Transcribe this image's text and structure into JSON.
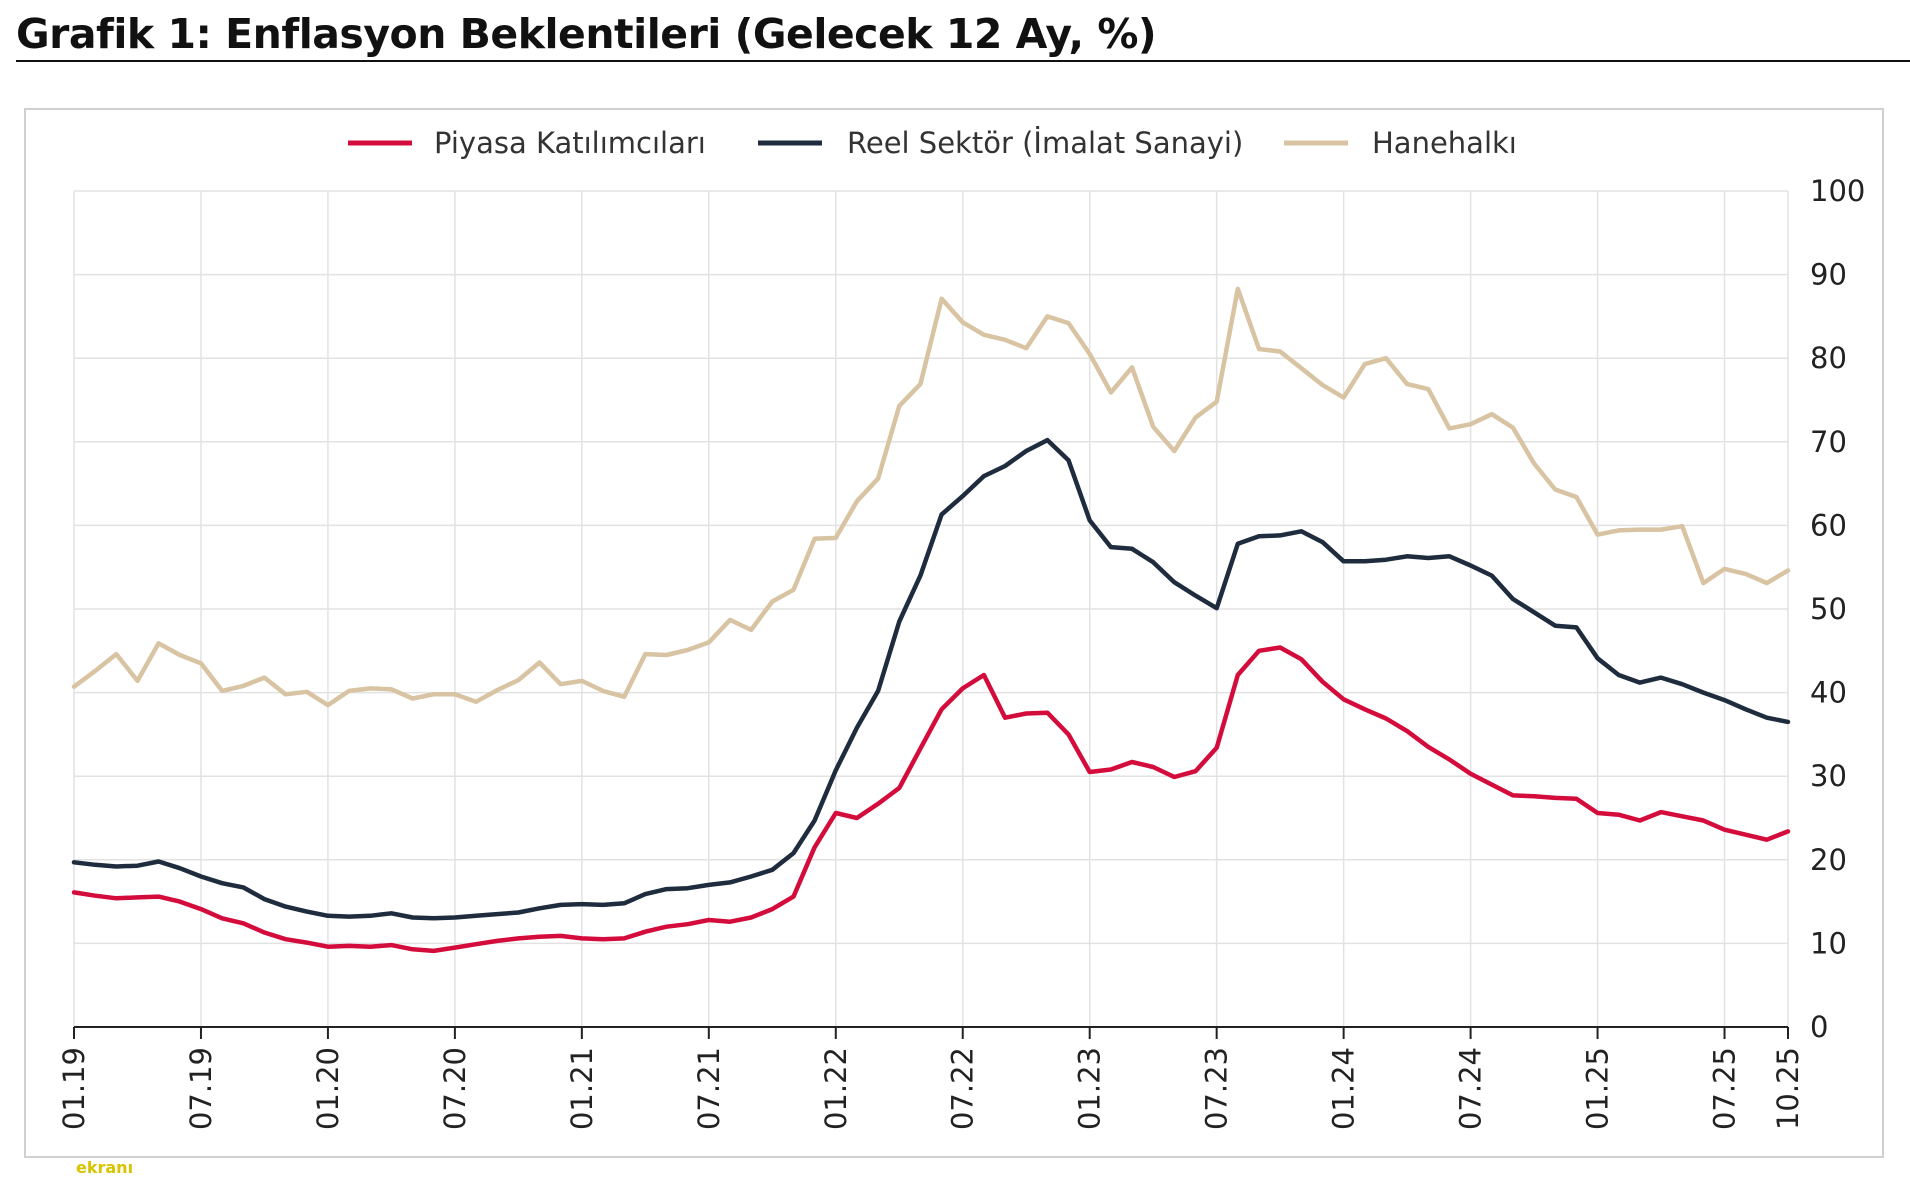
{
  "title": "Grafik 1: Enflasyon Beklentileri (Gelecek 12 Ay, %)",
  "watermark": "ekranı",
  "chart_data": {
    "type": "line",
    "title": "Grafik 1: Enflasyon Beklentileri (Gelecek 12 Ay, %)",
    "ylim": [
      0,
      100
    ],
    "yticks": [
      0,
      10,
      20,
      30,
      40,
      50,
      60,
      70,
      80,
      90,
      100
    ],
    "xticks": [
      {
        "label": "01.19",
        "x": 0
      },
      {
        "label": "07.19",
        "x": 6
      },
      {
        "label": "01.20",
        "x": 12
      },
      {
        "label": "07.20",
        "x": 18
      },
      {
        "label": "01.21",
        "x": 24
      },
      {
        "label": "07.21",
        "x": 30
      },
      {
        "label": "01.22",
        "x": 36
      },
      {
        "label": "07.22",
        "x": 42
      },
      {
        "label": "01.23",
        "x": 48
      },
      {
        "label": "07.23",
        "x": 54
      },
      {
        "label": "01.24",
        "x": 60
      },
      {
        "label": "07.24",
        "x": 66
      },
      {
        "label": "01.25",
        "x": 72
      },
      {
        "label": "07.25",
        "x": 78
      },
      {
        "label": "10.25",
        "x": 81
      }
    ],
    "x_range": [
      0,
      81
    ],
    "grid": true,
    "legend_position": "top",
    "y_axis_side": "right",
    "series": [
      {
        "name": "Piyasa Katılımcıları",
        "color": "#d40c3c",
        "values": [
          16.1,
          15.7,
          15.4,
          15.5,
          15.6,
          15.0,
          14.1,
          13.0,
          12.4,
          11.3,
          10.5,
          10.1,
          9.6,
          9.7,
          9.6,
          9.8,
          9.3,
          9.1,
          9.5,
          9.9,
          10.3,
          10.6,
          10.8,
          10.9,
          10.6,
          10.5,
          10.6,
          11.4,
          12.0,
          12.3,
          12.8,
          12.6,
          13.1,
          14.1,
          15.6,
          21.5,
          25.6,
          25.0,
          26.7,
          28.6,
          33.3,
          38.0,
          40.5,
          42.1,
          37.0,
          37.5,
          37.6,
          35.0,
          30.5,
          30.8,
          31.7,
          31.1,
          29.9,
          30.6,
          33.4,
          42.1,
          45.0,
          45.4,
          44.0,
          41.3,
          39.2,
          38.0,
          36.9,
          35.4,
          33.5,
          32.0,
          30.3,
          29.0,
          27.7,
          27.6,
          27.4,
          27.3,
          25.6,
          25.4,
          24.7,
          25.7,
          25.2,
          24.7,
          23.6,
          23.0,
          22.4,
          23.4
        ]
      },
      {
        "name": "Reel Sektör (İmalat Sanayi)",
        "color": "#1e2c3d",
        "values": [
          19.7,
          19.4,
          19.2,
          19.3,
          19.8,
          19.0,
          18.0,
          17.2,
          16.7,
          15.3,
          14.4,
          13.8,
          13.3,
          13.2,
          13.3,
          13.6,
          13.1,
          13.0,
          13.1,
          13.3,
          13.5,
          13.7,
          14.2,
          14.6,
          14.7,
          14.6,
          14.8,
          15.9,
          16.5,
          16.6,
          17.0,
          17.3,
          18.0,
          18.8,
          20.8,
          24.7,
          30.7,
          35.8,
          40.2,
          48.5,
          54.0,
          61.3,
          63.5,
          65.9,
          67.1,
          68.9,
          70.2,
          67.8,
          60.6,
          57.4,
          57.2,
          55.6,
          53.2,
          51.6,
          50.1,
          57.8,
          58.7,
          58.8,
          59.3,
          58.0,
          55.7,
          55.7,
          55.9,
          56.3,
          56.1,
          56.3,
          55.2,
          54.0,
          51.2,
          49.6,
          48.0,
          47.8,
          44.1,
          42.1,
          41.2,
          41.8,
          41.0,
          40.0,
          39.1,
          38.0,
          37.0,
          36.5
        ]
      },
      {
        "name": "Hanehalkı",
        "color": "#d8c3a2",
        "values": [
          40.7,
          42.6,
          44.6,
          41.4,
          45.9,
          44.5,
          43.5,
          40.2,
          40.8,
          41.8,
          39.8,
          40.1,
          38.5,
          40.2,
          40.5,
          40.4,
          39.3,
          39.8,
          39.8,
          38.9,
          40.3,
          41.5,
          43.6,
          41.0,
          41.4,
          40.2,
          39.5,
          44.6,
          44.5,
          45.1,
          46.0,
          48.7,
          47.5,
          50.9,
          52.3,
          58.4,
          58.5,
          62.9,
          65.6,
          74.3,
          76.9,
          87.1,
          84.3,
          82.8,
          82.2,
          81.2,
          85.0,
          84.2,
          80.5,
          75.9,
          78.9,
          71.8,
          68.9,
          72.9,
          74.8,
          88.3,
          81.1,
          80.8,
          78.8,
          76.8,
          75.3,
          79.3,
          80.0,
          76.9,
          76.3,
          71.6,
          72.1,
          73.3,
          71.7,
          67.4,
          64.3,
          63.4,
          58.9,
          59.4,
          59.5,
          59.5,
          59.9,
          53.1,
          54.8,
          54.2,
          53.1,
          54.6
        ]
      }
    ]
  }
}
